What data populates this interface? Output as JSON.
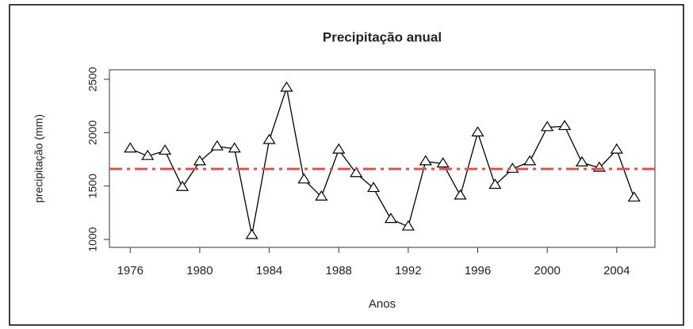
{
  "chart_data": {
    "type": "line",
    "title": "Precipitação anual",
    "x_label": "Anos",
    "y_label": "precipitação (mm)",
    "x": [
      1976,
      1977,
      1978,
      1979,
      1980,
      1981,
      1982,
      1983,
      1984,
      1985,
      1986,
      1987,
      1988,
      1989,
      1990,
      1991,
      1992,
      1993,
      1994,
      1995,
      1996,
      1997,
      1998,
      1999,
      2000,
      2001,
      2002,
      2003,
      2004,
      2005
    ],
    "series": [
      {
        "name": "precipitação",
        "color": "#000000",
        "values": [
          1850,
          1780,
          1830,
          1490,
          1730,
          1870,
          1850,
          1040,
          1930,
          2420,
          1560,
          1400,
          1840,
          1620,
          1480,
          1190,
          1120,
          1730,
          1710,
          1410,
          2000,
          1510,
          1660,
          1730,
          2050,
          2060,
          1720,
          1670,
          1840,
          1390
        ]
      }
    ],
    "reference_line": {
      "value": 1660,
      "color": "#d9534f"
    },
    "marker": "triangle",
    "xlim": [
      1974.8,
      2006.2
    ],
    "xticks": [
      1976,
      1980,
      1984,
      1988,
      1992,
      1996,
      2000,
      2004
    ],
    "ylim": [
      926,
      2589
    ],
    "yticks": [
      1000,
      1500,
      2000,
      2500
    ],
    "grid": false
  }
}
